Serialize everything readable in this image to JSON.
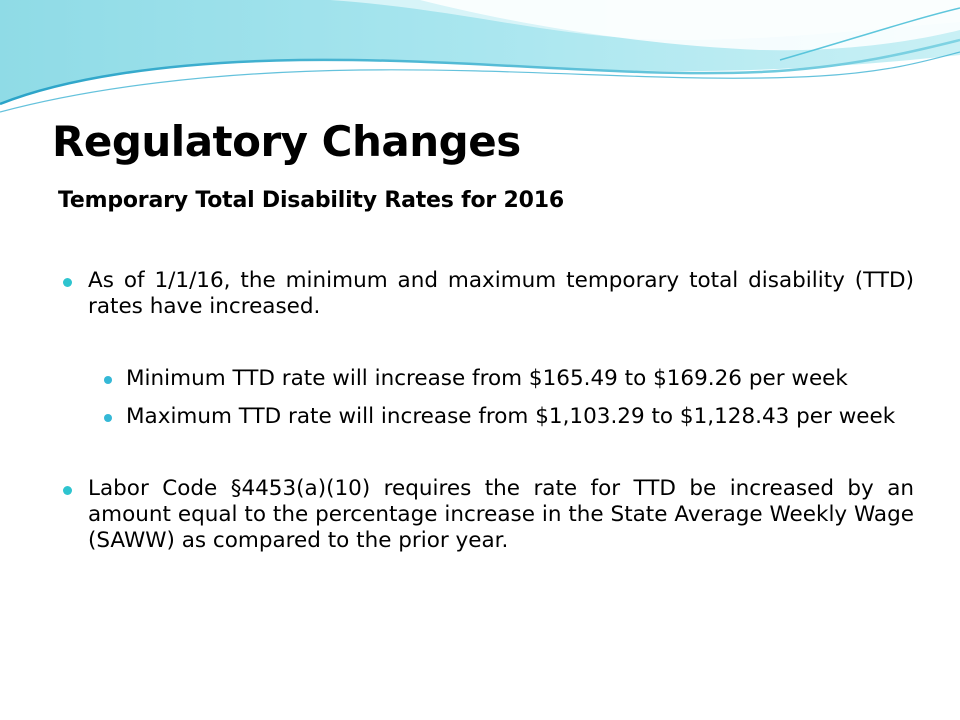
{
  "slide": {
    "title": "Regulatory Changes",
    "subtitle": "Temporary Total Disability Rates for 2016",
    "bullets": [
      {
        "level": 1,
        "text": "As of 1/1/16, the minimum and maximum temporary total disability (TTD) rates have increased."
      },
      {
        "level": 2,
        "text": "Minimum TTD rate will increase from $165.49 to $169.26 per week"
      },
      {
        "level": 2,
        "text": "Maximum TTD rate will increase from $1,103.29 to $1,128.43 per week"
      },
      {
        "level": 1,
        "text": "Labor Code §4453(a)(10) requires the rate for TTD be increased by an amount equal to the percentage increase in the State Average Weekly Wage (SAWW) as compared to the prior year."
      }
    ]
  },
  "colors": {
    "bullet_teal": "#2ec4cf",
    "wave_light": "#c7eef2",
    "wave_blue": "#1d9ac9"
  }
}
